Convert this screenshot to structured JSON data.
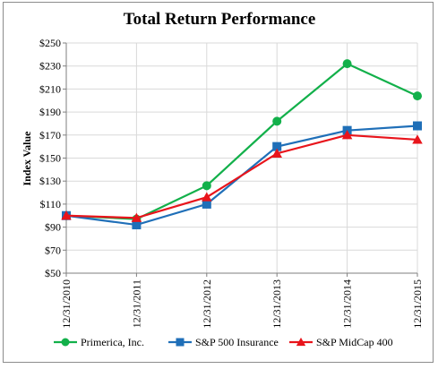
{
  "chart_data": {
    "type": "line",
    "title": "Total Return Performance",
    "xlabel": "",
    "ylabel": "Index Value",
    "categories": [
      "12/31/2010",
      "12/31/2011",
      "12/31/2012",
      "12/31/2013",
      "12/31/2014",
      "12/31/2015"
    ],
    "y_ticks": [
      "$50",
      "$70",
      "$90",
      "$110",
      "$130",
      "$150",
      "$170",
      "$190",
      "$210",
      "$230",
      "$250"
    ],
    "ylim": [
      50,
      250
    ],
    "grid": true,
    "legend_position": "bottom",
    "series": [
      {
        "name": "Primerica, Inc.",
        "color": "#12b04a",
        "marker": "circle",
        "values": [
          100,
          97,
          126,
          182,
          232,
          204
        ]
      },
      {
        "name": "S&P 500 Insurance",
        "color": "#1f6fb8",
        "marker": "square",
        "values": [
          100,
          92,
          110,
          160,
          174,
          178
        ]
      },
      {
        "name": "S&P MidCap 400",
        "color": "#e8141b",
        "marker": "triangle",
        "values": [
          100,
          98,
          116,
          154,
          170,
          166
        ]
      }
    ]
  }
}
